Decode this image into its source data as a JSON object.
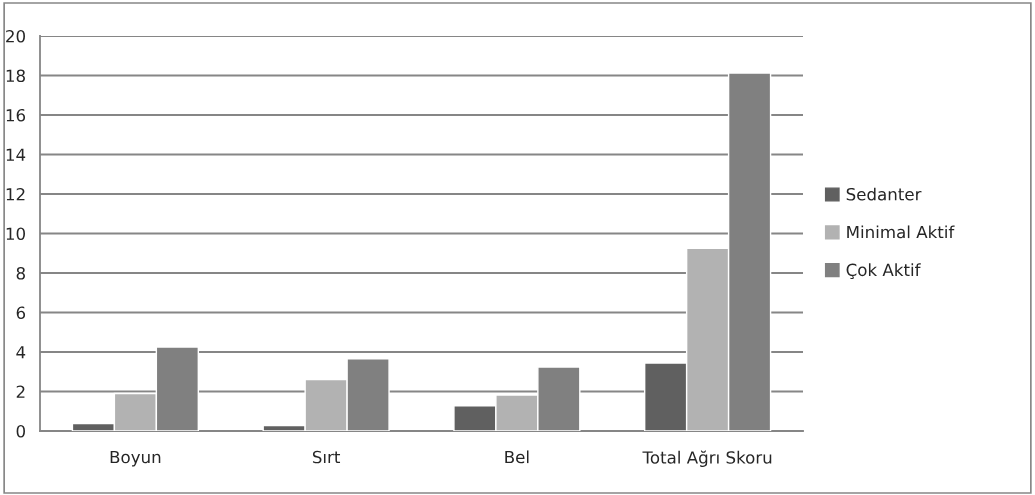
{
  "chart_data": {
    "type": "bar",
    "categories": [
      "Boyun",
      "Sırt",
      "Bel",
      "Total Ağrı Skoru"
    ],
    "series": [
      {
        "name": "Sedanter",
        "color": "#606060",
        "values": [
          0.38,
          0.27,
          1.28,
          3.44
        ]
      },
      {
        "name": "Minimal Aktif",
        "color": "#b2b2b2",
        "values": [
          1.9,
          2.6,
          1.82,
          9.25
        ]
      },
      {
        "name": "Çok Aktif",
        "color": "#808080",
        "values": [
          4.25,
          3.65,
          3.24,
          18.13
        ]
      }
    ],
    "ylim": [
      0,
      20
    ],
    "yticks": [
      0,
      2,
      4,
      6,
      8,
      10,
      12,
      14,
      16,
      18,
      20
    ],
    "grid": "y",
    "legend": "right"
  }
}
